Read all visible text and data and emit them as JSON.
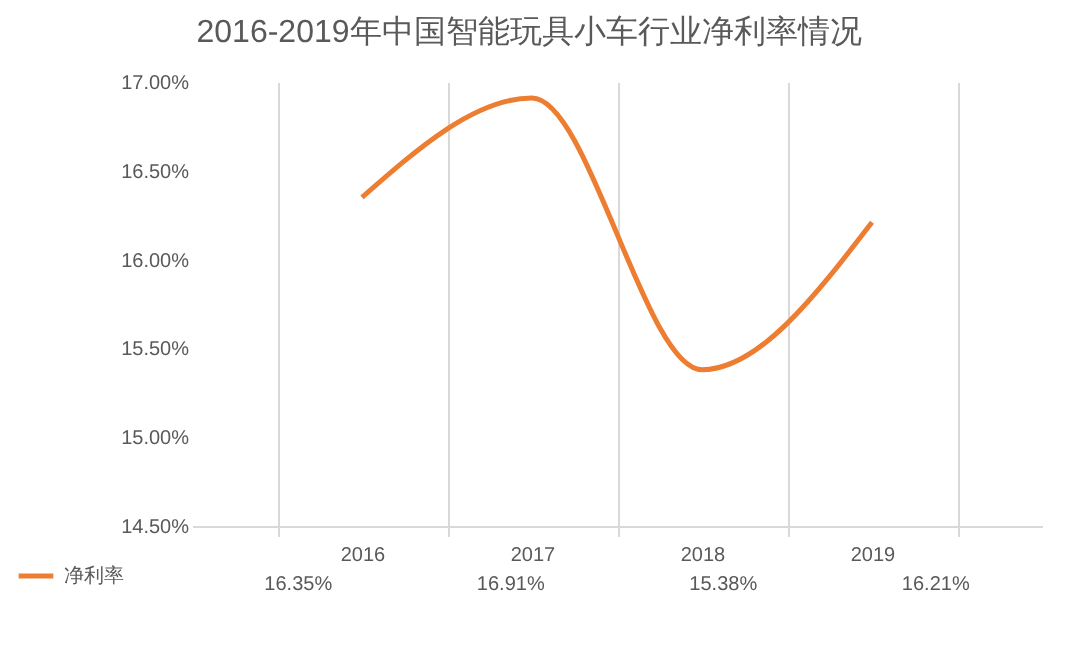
{
  "chart_data": {
    "type": "line",
    "title": "2016-2019年中国智能玩具小车行业净利率情况",
    "categories": [
      "2016",
      "2017",
      "2018",
      "2019"
    ],
    "series": [
      {
        "name": "净利率",
        "color": "#ed7d31",
        "values": [
          16.35,
          16.91,
          15.38,
          16.21
        ],
        "value_labels": [
          "16.35%",
          "16.91%",
          "15.38%",
          "16.21%"
        ]
      }
    ],
    "ylim": [
      14.5,
      17
    ],
    "yticks": [
      {
        "value": 14.5,
        "label": "14.50%"
      },
      {
        "value": 15,
        "label": "15.00%"
      },
      {
        "value": 15.5,
        "label": "15.50%"
      },
      {
        "value": 16,
        "label": "16.00%"
      },
      {
        "value": 16.5,
        "label": "16.50%"
      },
      {
        "value": 17,
        "label": "17.00%"
      }
    ],
    "grid": false,
    "legend": "bottom left",
    "marker": "none",
    "line_style": "solid"
  }
}
